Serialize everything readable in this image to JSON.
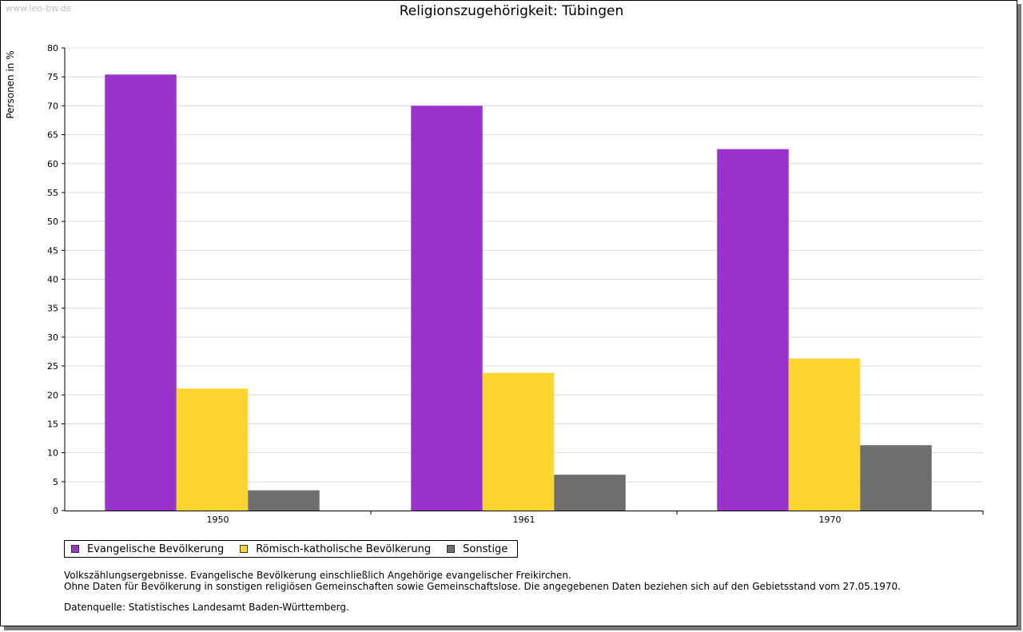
{
  "watermark": "www.leo-bw.de",
  "colors": {
    "evangelisch": "#9933cc",
    "katholisch": "#fcd52e",
    "sonstige": "#6e6e6e",
    "grid": "#dcdcdc"
  },
  "chart_data": {
    "type": "bar",
    "title": "Religionszugehörigkeit: Tübingen",
    "ylabel": "Personen in %",
    "xlabel": "",
    "categories": [
      "1950",
      "1961",
      "1970"
    ],
    "ylim": [
      0,
      80
    ],
    "yticks": [
      0,
      5,
      10,
      15,
      20,
      25,
      30,
      35,
      40,
      45,
      50,
      55,
      60,
      65,
      70,
      75,
      80
    ],
    "grid": true,
    "legend_position": "bottom",
    "series": [
      {
        "name": "Evangelische Bevölkerung",
        "color": "#9933cc",
        "values": [
          75.4,
          70.0,
          62.5
        ]
      },
      {
        "name": "Römisch-katholische Bevölkerung",
        "color": "#fcd52e",
        "values": [
          21.1,
          23.8,
          26.3
        ]
      },
      {
        "name": "Sonstige",
        "color": "#6e6e6e",
        "values": [
          3.5,
          6.2,
          11.3
        ]
      }
    ]
  },
  "notes": {
    "line1": "Volkszählungsergebnisse. Evangelische Bevölkerung einschließlich Angehörige evangelischer Freikirchen.",
    "line2": "Ohne Daten für Bevölkerung in sonstigen religiösen Gemeinschaften sowie Gemeinschaftslose. Die angegebenen Daten beziehen sich auf den Gebietsstand vom 27.05.1970.",
    "source": "Datenquelle: Statistisches Landesamt Baden-Württemberg."
  }
}
